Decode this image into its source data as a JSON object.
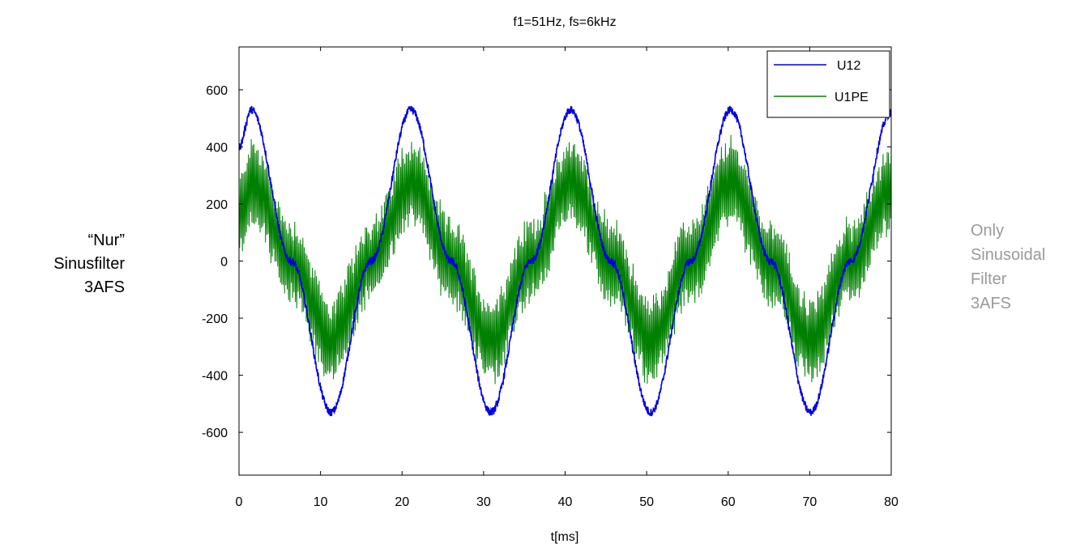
{
  "side_notes": {
    "left": [
      "“Nur”",
      "Sinusfilter",
      "3AFS"
    ],
    "right": [
      "Only",
      "Sinusoidal",
      "Filter",
      "3AFS"
    ]
  },
  "chart_data": {
    "type": "line",
    "title": "f1=51Hz, fs=6kHz",
    "xlabel": "t[ms]",
    "ylabel": "",
    "xlim": [
      0,
      80
    ],
    "ylim": [
      -750,
      750
    ],
    "xticks": [
      0,
      10,
      20,
      30,
      40,
      50,
      60,
      70,
      80
    ],
    "yticks": [
      -600,
      -400,
      -200,
      0,
      200,
      400,
      600
    ],
    "grid": false,
    "legend_position": "top-right",
    "series": [
      {
        "name": "U12",
        "color": "#0000e0",
        "description_points": {
          "x": [
            0,
            1.5,
            6.4,
            11.3,
            16.2,
            21.1,
            26.0,
            30.9,
            35.8,
            40.7,
            45.6,
            50.5,
            55.4,
            60.3,
            65.2,
            70.1,
            75.0,
            80.0
          ],
          "y": [
            400,
            530,
            0,
            -530,
            0,
            530,
            0,
            -530,
            0,
            530,
            0,
            -530,
            0,
            530,
            0,
            -530,
            0,
            520
          ]
        }
      },
      {
        "name": "U1PE",
        "color": "#008000",
        "description_points": {
          "x": [
            0,
            1.5,
            6.4,
            11.3,
            16.2,
            21.1,
            26.0,
            30.9,
            35.8,
            40.7,
            45.6,
            50.5,
            55.4,
            60.3,
            65.2,
            70.1,
            75.0,
            80.0
          ],
          "y": [
            150,
            280,
            0,
            -280,
            0,
            280,
            0,
            -280,
            0,
            280,
            0,
            -280,
            0,
            280,
            0,
            -280,
            0,
            250
          ],
          "ripple_amplitude": 300,
          "ripple_frequency_khz": 6
        }
      }
    ]
  }
}
